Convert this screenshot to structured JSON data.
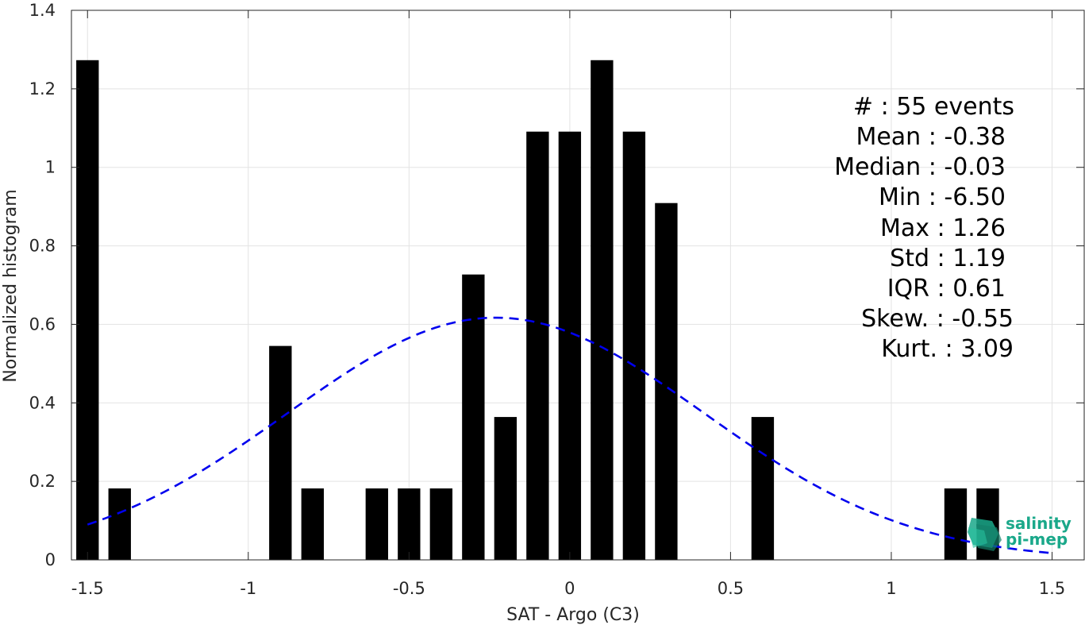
{
  "chart_data": {
    "type": "bar",
    "xlabel": "SAT - Argo (C3)",
    "ylabel": "Normalized histogram",
    "xlim": [
      -1.55,
      1.6
    ],
    "ylim": [
      0,
      1.4
    ],
    "xticks": [
      -1.5,
      -1,
      -0.5,
      0,
      0.5,
      1,
      1.5
    ],
    "xtick_labels": [
      "-1.5",
      "-1",
      "-0.5",
      "0",
      "0.5",
      "1",
      "1.5"
    ],
    "yticks": [
      0,
      0.2,
      0.4,
      0.6,
      0.8,
      1,
      1.2,
      1.4
    ],
    "ytick_labels": [
      "0",
      "0.2",
      "0.4",
      "0.6",
      "0.8",
      "1",
      "1.2",
      "1.4"
    ],
    "grid": true,
    "bar_width": 0.07,
    "bar_color": "#000000",
    "bars": [
      {
        "x": -1.5,
        "y": 1.273
      },
      {
        "x": -1.4,
        "y": 0.182
      },
      {
        "x": -0.9,
        "y": 0.545
      },
      {
        "x": -0.8,
        "y": 0.182
      },
      {
        "x": -0.6,
        "y": 0.182
      },
      {
        "x": -0.5,
        "y": 0.182
      },
      {
        "x": -0.4,
        "y": 0.182
      },
      {
        "x": -0.3,
        "y": 0.727
      },
      {
        "x": -0.2,
        "y": 0.364
      },
      {
        "x": -0.1,
        "y": 1.091
      },
      {
        "x": 0.0,
        "y": 1.091
      },
      {
        "x": 0.1,
        "y": 1.273
      },
      {
        "x": 0.2,
        "y": 1.091
      },
      {
        "x": 0.3,
        "y": 0.909
      },
      {
        "x": 0.6,
        "y": 0.364
      },
      {
        "x": 1.2,
        "y": 0.182
      },
      {
        "x": 1.3,
        "y": 0.182
      }
    ],
    "fit_curve": {
      "style": "dashed",
      "color": "#0000ee",
      "peak_x": -0.23,
      "peak_y": 0.617,
      "sigma": 0.647,
      "x_range": [
        -1.5,
        1.5
      ]
    },
    "stats": [
      "#  : 55 events",
      "Mean : -0.38",
      "Median : -0.03",
      "Min : -6.50",
      "Max : 1.26",
      "Std : 1.19",
      "IQR : 0.61",
      "Skew. : -0.55",
      "Kurt. : 3.09"
    ]
  },
  "logo": {
    "line1": "salinity",
    "line2": "pi-mep",
    "color": "#1aa88a",
    "icon": "salinity-pimep-logo-icon"
  }
}
